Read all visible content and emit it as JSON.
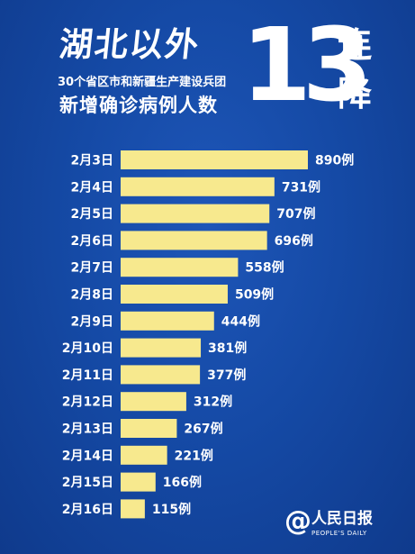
{
  "header": {
    "title": "湖北以外",
    "subtitle_line1": "30个省区市和新疆生产建设兵团",
    "subtitle_line2": "新增确诊病例人数",
    "big_number": "13",
    "side_word_1": "连",
    "side_word_2": "降"
  },
  "chart_data": {
    "type": "bar",
    "orientation": "horizontal",
    "categories": [
      "2月3日",
      "2月4日",
      "2月5日",
      "2月6日",
      "2月7日",
      "2月8日",
      "2月9日",
      "2月10日",
      "2月11日",
      "2月12日",
      "2月13日",
      "2月14日",
      "2月15日",
      "2月16日"
    ],
    "values": [
      890,
      731,
      707,
      696,
      558,
      509,
      444,
      381,
      377,
      312,
      267,
      221,
      166,
      115
    ],
    "value_labels": [
      "890例",
      "731例",
      "707例",
      "696例",
      "558例",
      "509例",
      "444例",
      "381例",
      "377例",
      "312例",
      "267例",
      "221例",
      "166例",
      "115例"
    ],
    "bar_color": "#f7e98e",
    "xlim": [
      0,
      890
    ],
    "grid": false,
    "legend": false
  },
  "logo": {
    "mark": "@",
    "cn": "人民日报",
    "en": "PEOPLE'S DAILY"
  },
  "colors": {
    "background": "#154aa6",
    "text": "#ffffff",
    "bar": "#f7e98e"
  }
}
